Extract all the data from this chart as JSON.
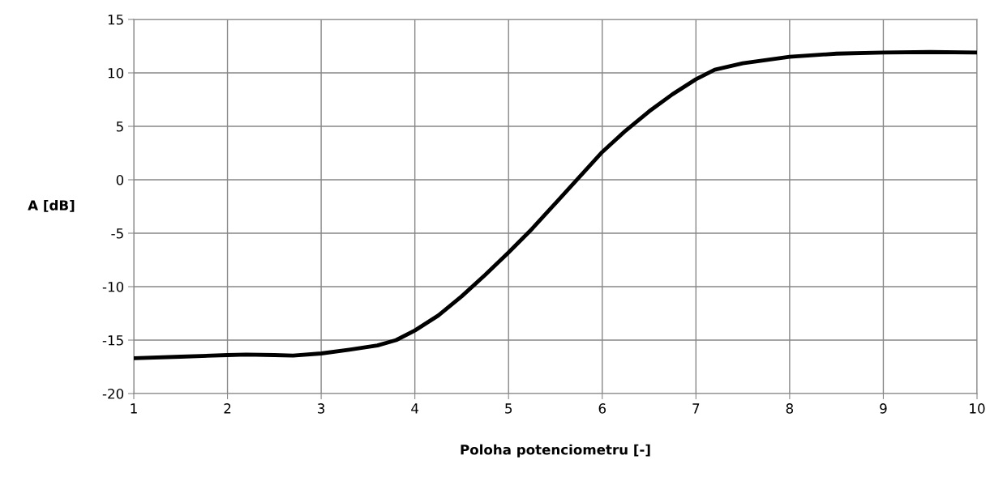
{
  "chart_data": {
    "type": "line",
    "xlabel": "Poloha potenciometru [-]",
    "ylabel": "A [dB]",
    "x": [
      1,
      1.5,
      2,
      2.2,
      2.5,
      2.7,
      3,
      3.3,
      3.6,
      3.8,
      4,
      4.25,
      4.5,
      4.75,
      5,
      5.25,
      5.5,
      5.75,
      6,
      6.25,
      6.5,
      6.75,
      7,
      7.2,
      7.5,
      7.75,
      8,
      8.5,
      9,
      9.5,
      10
    ],
    "series": [
      {
        "color": "#000000",
        "values": [
          -16.7,
          -16.55,
          -16.4,
          -16.35,
          -16.4,
          -16.45,
          -16.25,
          -15.9,
          -15.5,
          -15.0,
          -14.1,
          -12.7,
          -10.9,
          -8.9,
          -6.8,
          -4.6,
          -2.2,
          0.2,
          2.6,
          4.6,
          6.4,
          8.0,
          9.4,
          10.3,
          10.9,
          11.2,
          11.5,
          11.8,
          11.9,
          11.95,
          11.9
        ]
      }
    ],
    "xlim": [
      1,
      10
    ],
    "xticks": [
      1,
      2,
      3,
      4,
      5,
      6,
      7,
      8,
      9,
      10
    ],
    "ylim": [
      -20,
      15
    ],
    "yticks": [
      -20,
      -15,
      -10,
      -5,
      0,
      5,
      10,
      15
    ],
    "grid": true,
    "legend": false,
    "marker": "none",
    "line_style": "solid"
  }
}
